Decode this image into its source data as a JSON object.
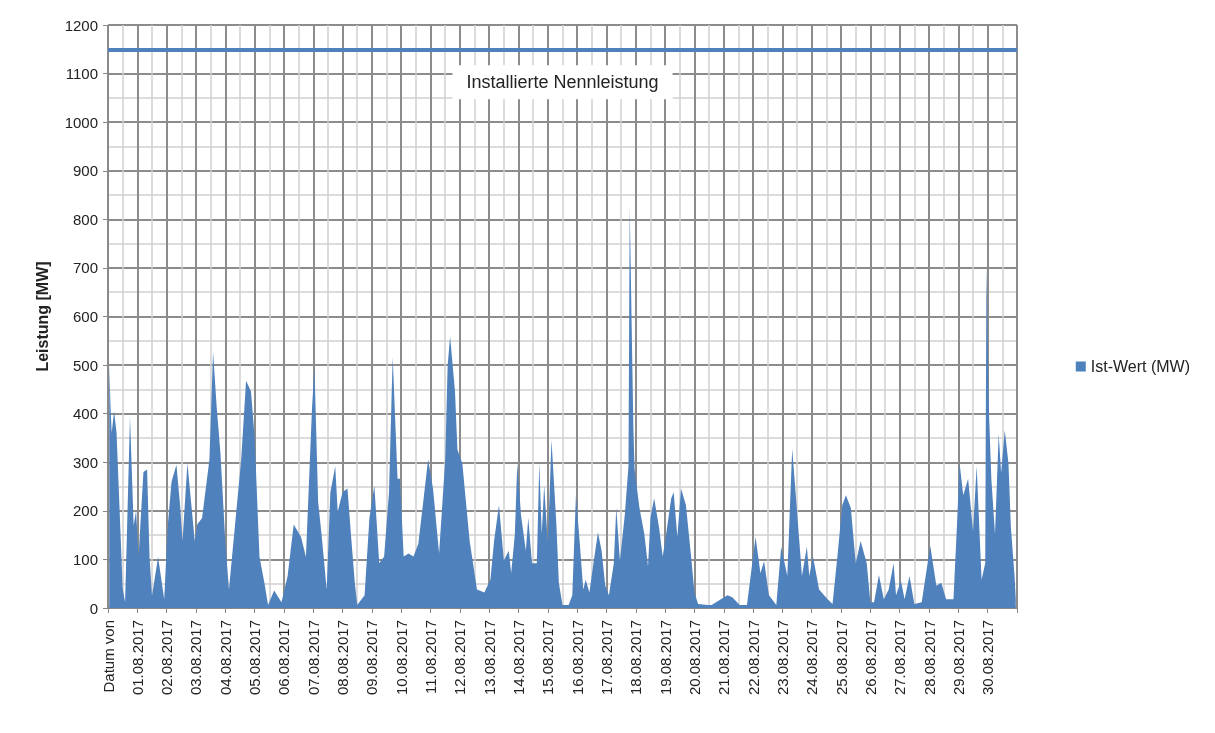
{
  "chart_data": {
    "type": "area",
    "ylabel": "Leistung [MW]",
    "legend": "right",
    "grid": true,
    "marker": "none",
    "xlim": [
      "2017-07-31",
      "2017-08-31"
    ],
    "ylim": [
      0,
      1200
    ],
    "yticks": [
      0,
      100,
      200,
      300,
      400,
      500,
      600,
      700,
      800,
      900,
      1000,
      1100,
      1200
    ],
    "xticks": [
      {
        "value": "2017-07-31",
        "label": "Datum von"
      },
      {
        "value": "2017-08-01",
        "label": "01.08.2017"
      },
      {
        "value": "2017-08-02",
        "label": "02.08.2017"
      },
      {
        "value": "2017-08-03",
        "label": "03.08.2017"
      },
      {
        "value": "2017-08-04",
        "label": "04.08.2017"
      },
      {
        "value": "2017-08-05",
        "label": "05.08.2017"
      },
      {
        "value": "2017-08-06",
        "label": "06.08.2017"
      },
      {
        "value": "2017-08-07",
        "label": "07.08.2017"
      },
      {
        "value": "2017-08-08",
        "label": "08.08.2017"
      },
      {
        "value": "2017-08-09",
        "label": "09.08.2017"
      },
      {
        "value": "2017-08-10",
        "label": "10.08.2017"
      },
      {
        "value": "2017-08-11",
        "label": "11.08.2017"
      },
      {
        "value": "2017-08-12",
        "label": "12.08.2017"
      },
      {
        "value": "2017-08-13",
        "label": "13.08.2017"
      },
      {
        "value": "2017-08-14",
        "label": "14.08.2017"
      },
      {
        "value": "2017-08-15",
        "label": "15.08.2017"
      },
      {
        "value": "2017-08-16",
        "label": "16.08.2017"
      },
      {
        "value": "2017-08-17",
        "label": "17.08.2017"
      },
      {
        "value": "2017-08-18",
        "label": "18.08.2017"
      },
      {
        "value": "2017-08-19",
        "label": "19.08.2017"
      },
      {
        "value": "2017-08-20",
        "label": "20.08.2017"
      },
      {
        "value": "2017-08-21",
        "label": "21.08.2017"
      },
      {
        "value": "2017-08-22",
        "label": "22.08.2017"
      },
      {
        "value": "2017-08-23",
        "label": "23.08.2017"
      },
      {
        "value": "2017-08-24",
        "label": "24.08.2017"
      },
      {
        "value": "2017-08-25",
        "label": "25.08.2017"
      },
      {
        "value": "2017-08-26",
        "label": "26.08.2017"
      },
      {
        "value": "2017-08-27",
        "label": "27.08.2017"
      },
      {
        "value": "2017-08-28",
        "label": "28.08.2017"
      },
      {
        "value": "2017-08-29",
        "label": "29.08.2017"
      },
      {
        "value": "2017-08-30",
        "label": "30.08.2017"
      },
      {
        "value": "2017-08-31",
        "label": null
      }
    ],
    "ref_lines": [
      {
        "axis": "y",
        "value": 1150,
        "label": "Installierte Nennleistung",
        "color": "#4f81bd",
        "line_style": "solid"
      }
    ],
    "series": [
      {
        "name": "Ist-Wert (MW)",
        "color": "#4f81bd",
        "x": [
          "2017-07-31T01:00",
          "2017-07-31T02:00",
          "2017-07-31T03:00",
          "2017-07-31T05:00",
          "2017-07-31T07:00",
          "2017-07-31T10:00",
          "2017-07-31T12:00",
          "2017-07-31T14:00",
          "2017-07-31T18:00",
          "2017-07-31T21:00",
          "2017-07-31T23:00",
          "2017-08-01T01:00",
          "2017-08-01T05:00",
          "2017-08-01T08:00",
          "2017-08-01T10:00",
          "2017-08-01T12:00",
          "2017-08-01T17:00",
          "2017-08-01T22:00",
          "2017-08-02T01:00",
          "2017-08-02T04:00",
          "2017-08-02T08:00",
          "2017-08-02T11:00",
          "2017-08-02T13:00",
          "2017-08-02T17:00",
          "2017-08-02T23:00",
          "2017-08-03T01:00",
          "2017-08-03T05:00",
          "2017-08-03T11:00",
          "2017-08-03T14:00",
          "2017-08-03T17:00",
          "2017-08-03T20:00",
          "2017-08-04T00:00",
          "2017-08-04T03:00",
          "2017-08-04T08:00",
          "2017-08-04T13:00",
          "2017-08-04T17:00",
          "2017-08-04T21:00",
          "2017-08-05T00:00",
          "2017-08-05T04:00",
          "2017-08-05T08:00",
          "2017-08-05T11:00",
          "2017-08-05T16:00",
          "2017-08-05T22:00",
          "2017-08-06T03:00",
          "2017-08-06T08:00",
          "2017-08-06T14:00",
          "2017-08-06T18:00",
          "2017-08-06T23:00",
          "2017-08-07T01:00",
          "2017-08-07T04:00",
          "2017-08-07T07:00",
          "2017-08-07T11:00",
          "2017-08-07T14:00",
          "2017-08-07T18:00",
          "2017-08-07T20:00",
          "2017-08-08T00:00",
          "2017-08-08T04:00",
          "2017-08-08T07:00",
          "2017-08-08T10:00",
          "2017-08-08T12:00",
          "2017-08-08T18:00",
          "2017-08-08T22:00",
          "2017-08-09T02:00",
          "2017-08-09T06:00",
          "2017-08-09T10:00",
          "2017-08-09T14:00",
          "2017-08-09T17:00",
          "2017-08-09T21:00",
          "2017-08-09T23:00",
          "2017-08-10T02:00",
          "2017-08-10T06:00",
          "2017-08-10T10:00",
          "2017-08-10T14:00",
          "2017-08-10T18:00",
          "2017-08-10T22:00",
          "2017-08-11T02:00",
          "2017-08-11T07:00",
          "2017-08-11T12:00",
          "2017-08-11T14:00",
          "2017-08-11T16:00",
          "2017-08-11T20:00",
          "2017-08-11T22:00",
          "2017-08-12T02:00",
          "2017-08-12T08:00",
          "2017-08-12T14:00",
          "2017-08-12T20:00",
          "2017-08-13T01:00",
          "2017-08-13T04:00",
          "2017-08-13T08:00",
          "2017-08-13T12:00",
          "2017-08-13T16:00",
          "2017-08-13T18:00",
          "2017-08-13T21:00",
          "2017-08-13T23:00",
          "2017-08-14T02:00",
          "2017-08-14T06:00",
          "2017-08-14T08:00",
          "2017-08-14T11:00",
          "2017-08-14T15:00",
          "2017-08-14T17:00",
          "2017-08-14T19:00",
          "2017-08-14T21:00",
          "2017-08-15T00:00",
          "2017-08-15T03:00",
          "2017-08-15T07:00",
          "2017-08-15T09:00",
          "2017-08-15T12:00",
          "2017-08-15T17:00",
          "2017-08-15T20:00",
          "2017-08-15T23:00",
          "2017-08-16T02:00",
          "2017-08-16T05:00",
          "2017-08-16T07:00",
          "2017-08-16T10:00",
          "2017-08-16T13:00",
          "2017-08-16T17:00",
          "2017-08-16T20:00",
          "2017-08-16T23:00",
          "2017-08-17T02:00",
          "2017-08-17T06:00",
          "2017-08-17T08:00",
          "2017-08-17T11:00",
          "2017-08-17T15:00",
          "2017-08-17T18:00",
          "2017-08-17T19:00",
          "2017-08-17T20:00",
          "2017-08-17T22:00",
          "2017-08-17T23:00",
          "2017-08-18T03:00",
          "2017-08-18T07:00",
          "2017-08-18T10:00",
          "2017-08-18T12:00",
          "2017-08-18T15:00",
          "2017-08-18T19:00",
          "2017-08-18T22:00",
          "2017-08-19T00:00",
          "2017-08-19T05:00",
          "2017-08-19T07:00",
          "2017-08-19T10:00",
          "2017-08-19T13:00",
          "2017-08-19T17:00",
          "2017-08-19T21:00",
          "2017-08-20T00:00",
          "2017-08-20T03:00",
          "2017-08-20T11:00",
          "2017-08-20T14:00",
          "2017-08-21T03:00",
          "2017-08-21T07:00",
          "2017-08-21T13:00",
          "2017-08-21T19:00",
          "2017-08-21T23:00",
          "2017-08-22T02:00",
          "2017-08-22T06:00",
          "2017-08-22T09:00",
          "2017-08-22T13:00",
          "2017-08-22T19:00",
          "2017-08-22T23:00",
          "2017-08-23T04:00",
          "2017-08-23T08:00",
          "2017-08-23T12:00",
          "2017-08-23T16:00",
          "2017-08-23T20:00",
          "2017-08-23T22:00",
          "2017-08-24T01:00",
          "2017-08-24T06:00",
          "2017-08-24T13:00",
          "2017-08-24T17:00",
          "2017-08-24T21:00",
          "2017-08-25T01:00",
          "2017-08-25T04:00",
          "2017-08-25T08:00",
          "2017-08-25T12:00",
          "2017-08-25T16:00",
          "2017-08-25T21:00",
          "2017-08-26T00:00",
          "2017-08-26T03:00",
          "2017-08-26T07:00",
          "2017-08-26T11:00",
          "2017-08-26T15:00",
          "2017-08-26T19:00",
          "2017-08-26T21:00",
          "2017-08-27T01:00",
          "2017-08-27T04:00",
          "2017-08-27T08:00",
          "2017-08-27T12:00",
          "2017-08-27T18:00",
          "2017-08-28T01:00",
          "2017-08-28T06:00",
          "2017-08-28T10:00",
          "2017-08-28T14:00",
          "2017-08-28T20:00",
          "2017-08-28T23:00",
          "2017-08-29T01:00",
          "2017-08-29T04:00",
          "2017-08-29T08:00",
          "2017-08-29T12:00",
          "2017-08-29T15:00",
          "2017-08-29T19:00",
          "2017-08-29T22:00",
          "2017-08-29T23:00",
          "2017-08-30T01:00",
          "2017-08-30T03:00",
          "2017-08-30T06:00",
          "2017-08-30T09:00",
          "2017-08-30T11:00",
          "2017-08-30T14:00",
          "2017-08-30T17:00",
          "2017-08-30T19:00",
          "2017-08-30T22:00",
          "2017-08-30T23:00"
        ],
        "values": [
          500,
          420,
          360,
          405,
          360,
          170,
          40,
          12,
          393,
          170,
          200,
          105,
          280,
          285,
          105,
          25,
          105,
          18,
          172,
          260,
          295,
          212,
          138,
          298,
          138,
          172,
          185,
          305,
          527,
          412,
          320,
          138,
          38,
          172,
          305,
          468,
          446,
          352,
          105,
          52,
          6,
          36,
          12,
          66,
          172,
          146,
          105,
          412,
          495,
          218,
          146,
          38,
          238,
          292,
          198,
          238,
          246,
          146,
          52,
          6,
          26,
          186,
          252,
          92,
          106,
          238,
          517,
          266,
          266,
          106,
          112,
          106,
          132,
          218,
          306,
          246,
          112,
          306,
          499,
          559,
          446,
          326,
          298,
          138,
          38,
          32,
          58,
          138,
          212,
          98,
          118,
          72,
          152,
          298,
          192,
          118,
          186,
          92,
          92,
          298,
          152,
          252,
          132,
          346,
          172,
          52,
          6,
          6,
          26,
          232,
          138,
          38,
          58,
          32,
          86,
          156,
          118,
          46,
          26,
          92,
          206,
          98,
          192,
          292,
          827,
          673,
          372,
          286,
          206,
          152,
          86,
          186,
          226,
          166,
          106,
          138,
          226,
          238,
          146,
          246,
          212,
          112,
          32,
          8,
          6,
          6,
          26,
          22,
          6,
          6,
          86,
          146,
          72,
          96,
          26,
          6,
          126,
          66,
          328,
          198,
          66,
          126,
          66,
          106,
          38,
          18,
          8,
          106,
          212,
          232,
          206,
          92,
          138,
          92,
          12,
          12,
          68,
          18,
          38,
          92,
          26,
          56,
          18,
          66,
          8,
          12,
          128,
          46,
          52,
          18,
          18,
          178,
          298,
          232,
          266,
          158,
          292,
          58,
          92,
          707,
          406,
          266,
          152,
          358,
          278,
          366,
          298,
          166,
          66,
          18
        ]
      }
    ]
  }
}
